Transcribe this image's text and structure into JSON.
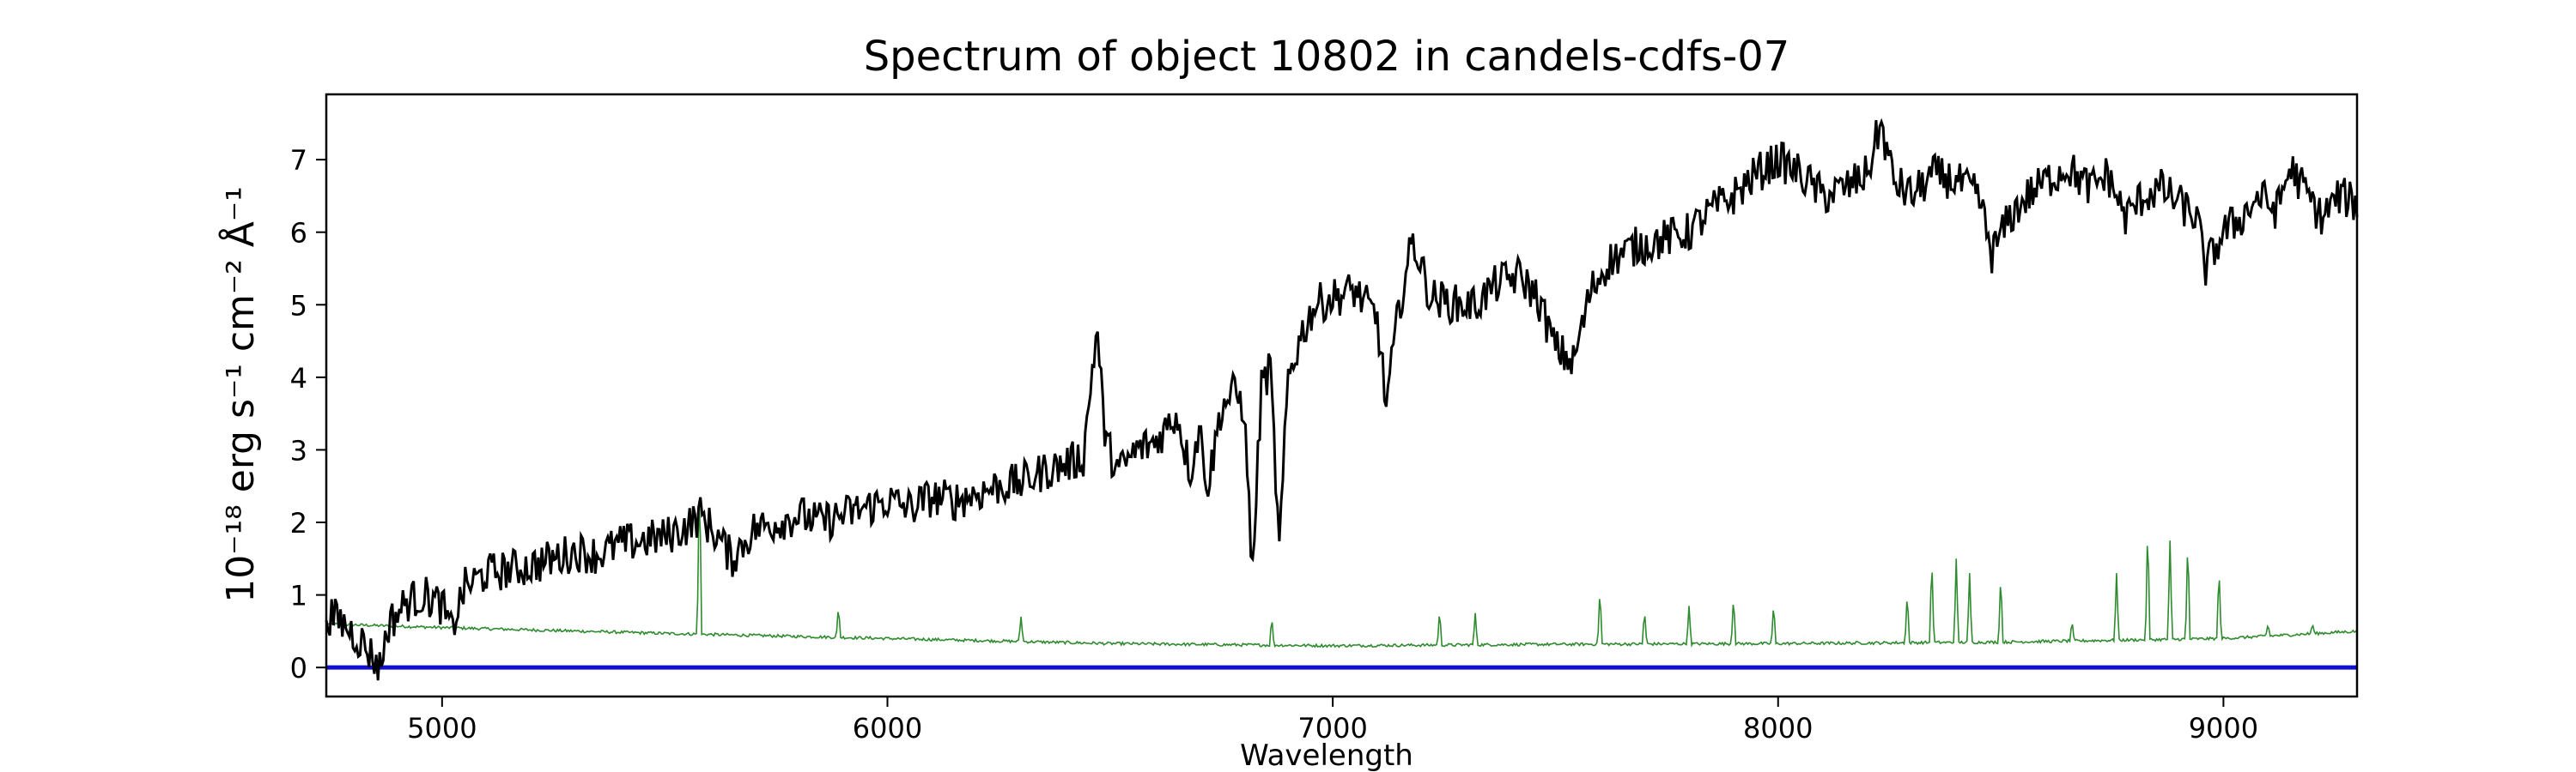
{
  "chart_data": {
    "type": "line",
    "title": "Spectrum of object 10802 in candels-cdfs-07",
    "xlabel": "Wavelength",
    "ylabel": "10⁻¹⁸ erg s⁻¹ cm⁻² Å⁻¹",
    "xlim": [
      4740,
      9300
    ],
    "ylim": [
      -0.4,
      7.9
    ],
    "xticks": [
      5000,
      6000,
      7000,
      8000,
      9000
    ],
    "yticks": [
      0,
      1,
      2,
      3,
      4,
      5,
      6,
      7
    ],
    "grid": false,
    "series": [
      {
        "role": "flux",
        "color": "#000000",
        "points": [
          [
            4740,
            0.75
          ],
          [
            4780,
            0.6
          ],
          [
            4820,
            0.35
          ],
          [
            4850,
            0.1
          ],
          [
            4860,
            0.0
          ],
          [
            4880,
            0.6
          ],
          [
            4920,
            0.9
          ],
          [
            4960,
            1.0
          ],
          [
            5000,
            0.85
          ],
          [
            5020,
            0.5
          ],
          [
            5050,
            1.1
          ],
          [
            5100,
            1.3
          ],
          [
            5150,
            1.35
          ],
          [
            5200,
            1.4
          ],
          [
            5250,
            1.5
          ],
          [
            5300,
            1.6
          ],
          [
            5350,
            1.55
          ],
          [
            5400,
            1.7
          ],
          [
            5450,
            1.75
          ],
          [
            5500,
            1.8
          ],
          [
            5550,
            1.95
          ],
          [
            5580,
            2.1
          ],
          [
            5620,
            1.8
          ],
          [
            5650,
            1.5
          ],
          [
            5700,
            1.9
          ],
          [
            5750,
            2.0
          ],
          [
            5800,
            2.1
          ],
          [
            5850,
            2.0
          ],
          [
            5900,
            2.1
          ],
          [
            5950,
            2.2
          ],
          [
            6000,
            2.3
          ],
          [
            6050,
            2.2
          ],
          [
            6100,
            2.35
          ],
          [
            6150,
            2.3
          ],
          [
            6200,
            2.4
          ],
          [
            6250,
            2.5
          ],
          [
            6300,
            2.55
          ],
          [
            6350,
            2.7
          ],
          [
            6400,
            2.8
          ],
          [
            6440,
            2.9
          ],
          [
            6470,
            4.7
          ],
          [
            6490,
            3.1
          ],
          [
            6520,
            2.7
          ],
          [
            6560,
            3.0
          ],
          [
            6600,
            3.1
          ],
          [
            6650,
            3.5
          ],
          [
            6680,
            2.7
          ],
          [
            6700,
            3.3
          ],
          [
            6720,
            2.5
          ],
          [
            6750,
            3.6
          ],
          [
            6780,
            3.8
          ],
          [
            6800,
            3.6
          ],
          [
            6820,
            1.3
          ],
          [
            6840,
            3.9
          ],
          [
            6860,
            4.1
          ],
          [
            6880,
            1.6
          ],
          [
            6900,
            4.0
          ],
          [
            6930,
            4.6
          ],
          [
            6960,
            5.0
          ],
          [
            7000,
            5.1
          ],
          [
            7050,
            5.2
          ],
          [
            7100,
            4.8
          ],
          [
            7120,
            3.6
          ],
          [
            7150,
            5.0
          ],
          [
            7180,
            5.9
          ],
          [
            7220,
            5.1
          ],
          [
            7280,
            5.0
          ],
          [
            7320,
            5.0
          ],
          [
            7370,
            5.3
          ],
          [
            7420,
            5.4
          ],
          [
            7460,
            5.1
          ],
          [
            7500,
            4.4
          ],
          [
            7540,
            4.2
          ],
          [
            7580,
            5.2
          ],
          [
            7620,
            5.6
          ],
          [
            7680,
            5.8
          ],
          [
            7740,
            5.9
          ],
          [
            7800,
            6.0
          ],
          [
            7850,
            6.3
          ],
          [
            7900,
            6.5
          ],
          [
            7950,
            6.8
          ],
          [
            8000,
            7.0
          ],
          [
            8050,
            6.8
          ],
          [
            8100,
            6.5
          ],
          [
            8150,
            6.6
          ],
          [
            8200,
            6.8
          ],
          [
            8230,
            7.5
          ],
          [
            8260,
            6.7
          ],
          [
            8300,
            6.5
          ],
          [
            8350,
            6.8
          ],
          [
            8400,
            6.7
          ],
          [
            8450,
            6.5
          ],
          [
            8480,
            5.7
          ],
          [
            8520,
            6.2
          ],
          [
            8560,
            6.5
          ],
          [
            8600,
            6.7
          ],
          [
            8650,
            6.9
          ],
          [
            8700,
            6.6
          ],
          [
            8740,
            6.8
          ],
          [
            8780,
            6.2
          ],
          [
            8820,
            6.5
          ],
          [
            8860,
            6.6
          ],
          [
            8900,
            6.4
          ],
          [
            8940,
            6.2
          ],
          [
            8960,
            5.5
          ],
          [
            9000,
            6.0
          ],
          [
            9040,
            6.2
          ],
          [
            9080,
            6.5
          ],
          [
            9120,
            6.3
          ],
          [
            9150,
            6.9
          ],
          [
            9180,
            6.6
          ],
          [
            9220,
            6.2
          ],
          [
            9260,
            6.5
          ],
          [
            9300,
            6.4
          ]
        ],
        "noise_amplitude": 0.28
      },
      {
        "role": "noise",
        "color": "#2e8b2e",
        "baseline": [
          [
            4740,
            0.6
          ],
          [
            5000,
            0.55
          ],
          [
            5500,
            0.47
          ],
          [
            6000,
            0.4
          ],
          [
            6500,
            0.33
          ],
          [
            7000,
            0.3
          ],
          [
            7500,
            0.32
          ],
          [
            8000,
            0.33
          ],
          [
            8500,
            0.35
          ],
          [
            9000,
            0.4
          ],
          [
            9300,
            0.5
          ]
        ],
        "lines": [
          [
            5578,
            2.75
          ],
          [
            5890,
            0.85
          ],
          [
            6300,
            0.7
          ],
          [
            6863,
            0.7
          ],
          [
            7240,
            0.8
          ],
          [
            7320,
            0.75
          ],
          [
            7600,
            1.1
          ],
          [
            7700,
            0.8
          ],
          [
            7800,
            0.85
          ],
          [
            7900,
            1.0
          ],
          [
            7990,
            0.9
          ],
          [
            8290,
            1.05
          ],
          [
            8345,
            1.55
          ],
          [
            8400,
            1.5
          ],
          [
            8430,
            1.3
          ],
          [
            8500,
            1.3
          ],
          [
            8660,
            0.65
          ],
          [
            8760,
            1.3
          ],
          [
            8830,
            2.0
          ],
          [
            8880,
            1.75
          ],
          [
            8920,
            1.8
          ],
          [
            8990,
            1.4
          ],
          [
            9100,
            0.6
          ],
          [
            9200,
            0.6
          ]
        ]
      },
      {
        "role": "zero",
        "color": "#1010d0",
        "y": 0
      }
    ]
  }
}
